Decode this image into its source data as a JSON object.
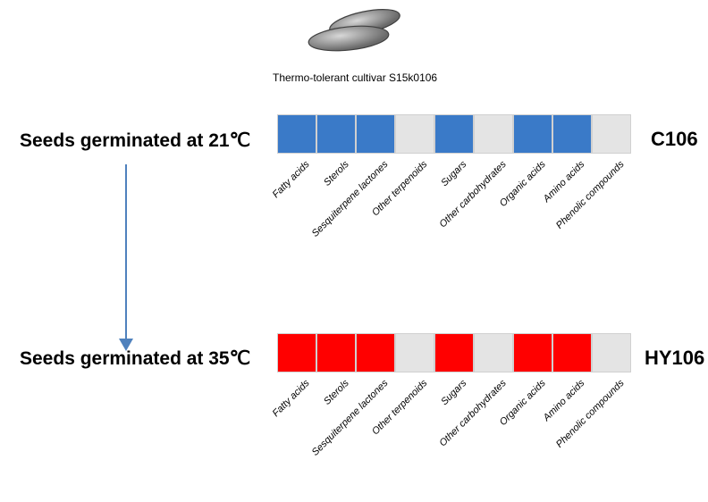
{
  "cultivar_label": "Thermo-tolerant cultivar S15k0106",
  "conditions": {
    "cond1": "Seeds germinated at 21℃",
    "cond2": "Seeds germinated at 35℃"
  },
  "samples": {
    "s1": "C106",
    "s2": "HY106"
  },
  "categories": [
    "Fatty acids",
    "Sterols",
    "Sesquiterpene lactones",
    "Other terpenoids",
    "Sugars",
    "Other carbohydrates",
    "Organic acids",
    "Amino acids",
    "Phenolic compounds"
  ],
  "rows": {
    "row1": {
      "highlight_color": "#3a7ac8",
      "off_color": "#e4e4e4",
      "states": [
        1,
        1,
        1,
        0,
        1,
        0,
        1,
        1,
        0
      ]
    },
    "row2": {
      "highlight_color": "#ff0000",
      "off_color": "#e4e4e4",
      "states": [
        1,
        1,
        1,
        0,
        1,
        0,
        1,
        1,
        0
      ]
    }
  },
  "arrow_color": "#4f81bd",
  "seed_colors": {
    "fill": "#a0a0a0",
    "stroke": "#404040",
    "highlight": "#d8d8d8"
  }
}
